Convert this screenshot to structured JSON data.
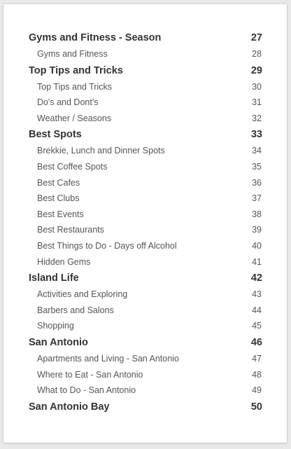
{
  "toc": [
    {
      "type": "section",
      "title": "Gyms and Fitness - Season",
      "page": "27"
    },
    {
      "type": "item",
      "title": "Gyms and Fitness",
      "page": "28"
    },
    {
      "type": "section",
      "title": "Top Tips and Tricks",
      "page": "29"
    },
    {
      "type": "item",
      "title": "Top Tips and Tricks",
      "page": "30"
    },
    {
      "type": "item",
      "title": "Do's and Dont's",
      "page": "31"
    },
    {
      "type": "item",
      "title": "Weather / Seasons",
      "page": "32"
    },
    {
      "type": "section",
      "title": "Best Spots",
      "page": "33"
    },
    {
      "type": "item",
      "title": "Brekkie, Lunch and Dinner Spots",
      "page": "34"
    },
    {
      "type": "item",
      "title": "Best Coffee Spots",
      "page": "35"
    },
    {
      "type": "item",
      "title": "Best Cafes",
      "page": "36"
    },
    {
      "type": "item",
      "title": "Best Clubs",
      "page": "37"
    },
    {
      "type": "item",
      "title": "Best Events",
      "page": "38"
    },
    {
      "type": "item",
      "title": "Best Restaurants",
      "page": "39"
    },
    {
      "type": "item",
      "title": "Best Things to Do - Days off Alcohol",
      "page": "40"
    },
    {
      "type": "item",
      "title": "Hidden Gems",
      "page": "41"
    },
    {
      "type": "section",
      "title": "Island Life",
      "page": "42"
    },
    {
      "type": "item",
      "title": "Activities and Exploring",
      "page": "43"
    },
    {
      "type": "item",
      "title": "Barbers and Salons",
      "page": "44"
    },
    {
      "type": "item",
      "title": "Shopping",
      "page": "45"
    },
    {
      "type": "section",
      "title": "San Antonio",
      "page": "46"
    },
    {
      "type": "item",
      "title": "Apartments and Living - San Antonio",
      "page": "47"
    },
    {
      "type": "item",
      "title": "Where to Eat - San Antonio",
      "page": "48"
    },
    {
      "type": "item",
      "title": "What to Do - San Antonio",
      "page": "49"
    },
    {
      "type": "section",
      "title": "San Antonio Bay",
      "page": "50"
    }
  ]
}
